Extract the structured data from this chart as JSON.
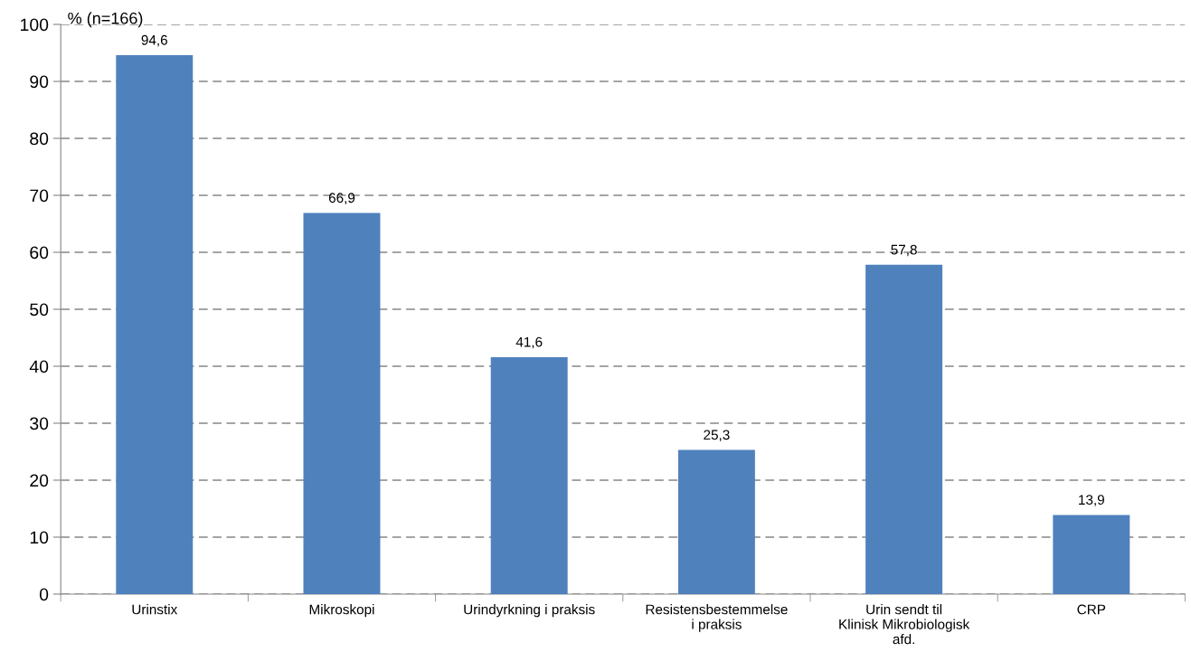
{
  "chart_data": {
    "type": "bar",
    "ylabel": "% (n=166)",
    "categories": [
      "Urinstix",
      "Mikroskopi",
      "Urindyrkning i praksis",
      "Resistensbestemmelse\ni praksis",
      "Urin sendt til\nKlinisk Mikrobiologisk\nafd.",
      "CRP"
    ],
    "values": [
      94.6,
      66.9,
      41.6,
      25.3,
      57.8,
      13.9
    ],
    "value_labels": [
      "94,6",
      "66,9",
      "41,6",
      "25,3",
      "57,8",
      "13,9"
    ],
    "color": "#4f81bd",
    "ylim": [
      0,
      100
    ],
    "yticks": [
      0,
      10,
      20,
      30,
      40,
      50,
      60,
      70,
      80,
      90,
      100
    ],
    "grid": "y",
    "line_style": "dashed"
  }
}
